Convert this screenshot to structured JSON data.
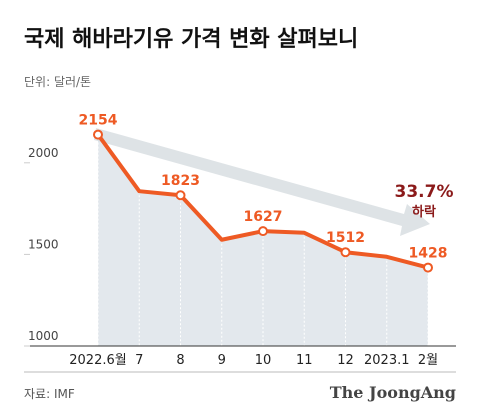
{
  "chart_data": {
    "type": "line",
    "title": "국제 해바라기유 가격 변화 살펴보니",
    "subtitle": "단위: 달러/톤",
    "source": "자료: IMF",
    "brand": "The JoongAng",
    "annotation": {
      "value": "33.7%",
      "text": "하락"
    },
    "categories": [
      "2022.6월",
      "7",
      "8",
      "9",
      "10",
      "11",
      "12",
      "2023.1",
      "2월"
    ],
    "values": [
      2154,
      1845,
      1823,
      1580,
      1627,
      1618,
      1512,
      1487,
      1428
    ],
    "value_labels": [
      "2154",
      null,
      "1823",
      null,
      "1627",
      null,
      "1512",
      null,
      "1428"
    ],
    "color": "#ee5a24",
    "area_color": "#e3e8ed",
    "ylim": [
      1000,
      2250
    ],
    "yticks": [
      1000,
      1500,
      2000
    ],
    "grid": false
  }
}
